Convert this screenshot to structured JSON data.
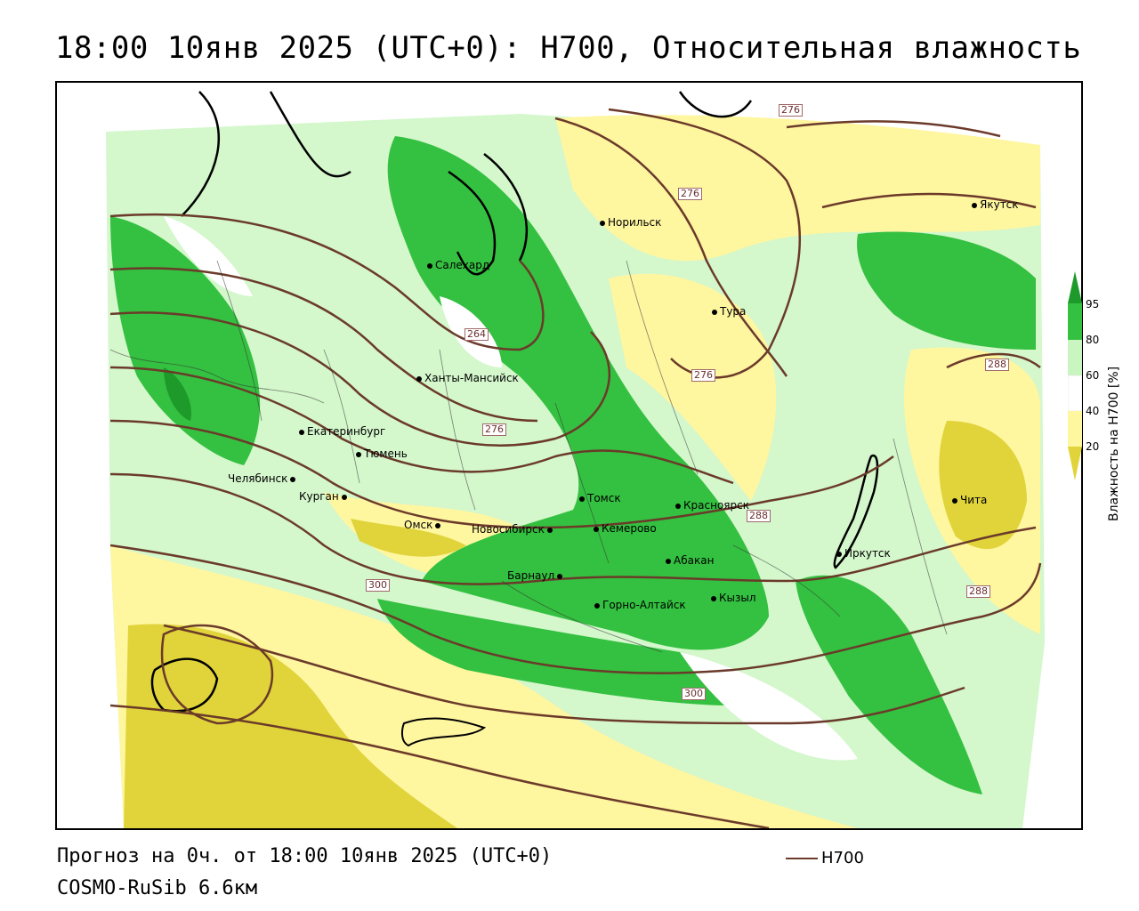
{
  "title": "18:00 10янв 2025 (UTC+0): H700, Относительная влажность",
  "footer": {
    "forecast": "Прогноз на 0ч. от 18:00 10янв 2025 (UTC+0)",
    "model": "COSMO-RuSib 6.6км"
  },
  "legend": {
    "label": "H700",
    "color": "#6b3a2a"
  },
  "colorbar": {
    "title": "Влажность на H700 [%]",
    "ticks": [
      "95",
      "80",
      "60",
      "40",
      "20"
    ],
    "colors": {
      "c95": "#1e9a2a",
      "c80": "#34c040",
      "c60": "#c8f5c0",
      "c40": "#ffffff",
      "c20": "#fff6a0",
      "c0": "#e0d43a"
    }
  },
  "cities": [
    {
      "name": "Норильск"
    },
    {
      "name": "Якутск"
    },
    {
      "name": "Салехард"
    },
    {
      "name": "Тура"
    },
    {
      "name": "Ханты-Мансийск"
    },
    {
      "name": "Екатеринбург"
    },
    {
      "name": "Тюмень"
    },
    {
      "name": "Челябинск"
    },
    {
      "name": "Курган"
    },
    {
      "name": "Омск"
    },
    {
      "name": "Новосибирск"
    },
    {
      "name": "Томск"
    },
    {
      "name": "Кемерово"
    },
    {
      "name": "Красноярск"
    },
    {
      "name": "Абакан"
    },
    {
      "name": "Барнаул"
    },
    {
      "name": "Горно-Алтайск"
    },
    {
      "name": "Кызыл"
    },
    {
      "name": "Иркутск"
    },
    {
      "name": "Чита"
    }
  ],
  "contour_labels": [
    "276",
    "276",
    "264",
    "276",
    "276",
    "288",
    "288",
    "288",
    "300",
    "300"
  ]
}
